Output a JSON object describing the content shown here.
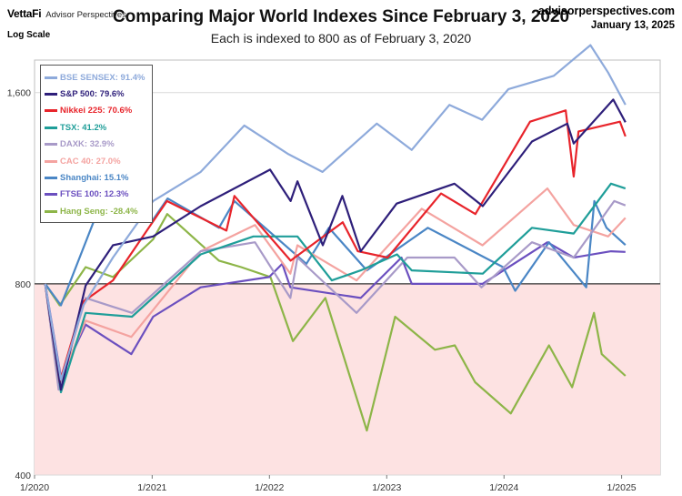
{
  "header": {
    "brand": "VettaFi",
    "brand_sub": "Advisor Perspectives",
    "scale_note": "Log Scale",
    "site": "advisorperspectives.com",
    "date": "January 13, 2025"
  },
  "chart_data": {
    "type": "line",
    "title": "Comparing Major World Indexes Since February 3, 2020",
    "subtitle": "Each is indexed to 800 as of February 3, 2020",
    "xlabel": "",
    "ylabel": "",
    "y_scale": "log",
    "ylim": [
      400,
      1800
    ],
    "baseline": 800,
    "below_baseline_fill": "#fde2e2",
    "y_ticks": [
      400,
      800,
      1600
    ],
    "y_tick_labels": [
      "400",
      "800",
      "1,600"
    ],
    "x_ticks": [
      "2020-01-01",
      "2021-01-01",
      "2022-01-01",
      "2023-01-01",
      "2024-01-01",
      "2025-01-01"
    ],
    "x_tick_labels": [
      "1/2020",
      "1/2021",
      "1/2022",
      "1/2023",
      "1/2024",
      "1/2025"
    ],
    "xlim": [
      "2020-01-01",
      "2025-05-01"
    ],
    "grid": "horizontal",
    "legend_position": "top-left",
    "series": [
      {
        "name": "BSE SENSEX: 91.4%",
        "color": "#8eaadb",
        "x": [
          "2020-02-03",
          "2020-03-23",
          "2020-06-01",
          "2020-09-01",
          "2021-01-04",
          "2021-06-01",
          "2021-10-15",
          "2022-03-01",
          "2022-06-15",
          "2022-12-01",
          "2023-03-20",
          "2023-07-15",
          "2023-10-25",
          "2024-01-15",
          "2024-06-04",
          "2024-09-26",
          "2024-11-20",
          "2025-01-13"
        ],
        "y": [
          800,
          565,
          740,
          880,
          1080,
          1200,
          1420,
          1280,
          1200,
          1430,
          1300,
          1530,
          1450,
          1620,
          1700,
          1900,
          1720,
          1531
        ]
      },
      {
        "name": "S&P 500: 79.6%",
        "color": "#2e1f7a",
        "x": [
          "2020-02-03",
          "2020-03-23",
          "2020-06-08",
          "2020-09-01",
          "2021-01-04",
          "2021-06-01",
          "2022-01-03",
          "2022-03-08",
          "2022-03-29",
          "2022-06-16",
          "2022-08-16",
          "2022-10-12",
          "2023-02-01",
          "2023-07-31",
          "2023-10-27",
          "2024-03-28",
          "2024-07-16",
          "2024-08-05",
          "2024-12-06",
          "2025-01-13"
        ],
        "y": [
          800,
          545,
          795,
          920,
          950,
          1060,
          1210,
          1080,
          1160,
          920,
          1100,
          900,
          1070,
          1150,
          1060,
          1340,
          1430,
          1330,
          1560,
          1437
        ]
      },
      {
        "name": "Nikkei 225: 70.6%",
        "color": "#e8242b",
        "x": [
          "2020-02-03",
          "2020-03-19",
          "2020-06-01",
          "2020-09-01",
          "2021-02-16",
          "2021-08-20",
          "2021-09-14",
          "2022-03-08",
          "2022-08-17",
          "2022-10-03",
          "2023-01-04",
          "2023-06-19",
          "2023-10-04",
          "2024-03-22",
          "2024-07-11",
          "2024-08-05",
          "2024-08-20",
          "2024-12-27",
          "2025-01-13"
        ],
        "y": [
          800,
          560,
          750,
          810,
          1080,
          970,
          1100,
          870,
          1000,
          900,
          880,
          1110,
          1030,
          1440,
          1500,
          1180,
          1390,
          1440,
          1365
        ]
      },
      {
        "name": "TSX: 41.2%",
        "color": "#1f9e99",
        "x": [
          "2020-02-03",
          "2020-03-23",
          "2020-06-08",
          "2020-10-30",
          "2021-06-01",
          "2021-11-12",
          "2022-03-29",
          "2022-07-14",
          "2022-10-12",
          "2023-02-02",
          "2023-03-20",
          "2023-10-27",
          "2024-03-28",
          "2024-08-05",
          "2024-11-29",
          "2025-01-13"
        ],
        "y": [
          800,
          540,
          720,
          710,
          890,
          950,
          950,
          810,
          840,
          890,
          840,
          830,
          980,
          960,
          1150,
          1130
        ]
      },
      {
        "name": "DAXK: 32.9%",
        "color": "#a89ac8",
        "x": [
          "2020-02-03",
          "2020-03-16",
          "2020-06-08",
          "2020-10-30",
          "2021-06-01",
          "2021-11-17",
          "2022-03-07",
          "2022-03-29",
          "2022-09-29",
          "2023-03-06",
          "2023-07-31",
          "2023-10-23",
          "2024-03-28",
          "2024-08-05",
          "2024-12-09",
          "2025-01-13"
        ],
        "y": [
          800,
          545,
          760,
          720,
          900,
          930,
          760,
          880,
          720,
          880,
          880,
          790,
          930,
          880,
          1080,
          1063
        ]
      },
      {
        "name": "CAC 40: 27.0%",
        "color": "#f4a3a0",
        "x": [
          "2020-02-03",
          "2020-03-18",
          "2020-06-08",
          "2020-10-28",
          "2021-06-01",
          "2021-11-17",
          "2022-03-07",
          "2022-03-29",
          "2022-09-29",
          "2023-04-20",
          "2023-10-26",
          "2024-05-15",
          "2024-08-05",
          "2024-11-20",
          "2025-01-13"
        ],
        "y": [
          800,
          560,
          700,
          660,
          900,
          990,
          830,
          920,
          810,
          1050,
          920,
          1130,
          990,
          950,
          1016
        ]
      },
      {
        "name": "Shanghai: 15.1%",
        "color": "#4a86c5",
        "x": [
          "2020-02-03",
          "2020-03-23",
          "2020-07-09",
          "2021-01-04",
          "2021-02-18",
          "2021-07-28",
          "2021-09-14",
          "2022-04-26",
          "2022-07-05",
          "2022-10-31",
          "2023-05-09",
          "2023-12-29",
          "2024-02-05",
          "2024-05-20",
          "2024-09-13",
          "2024-10-08",
          "2024-11-15",
          "2025-01-13"
        ],
        "y": [
          800,
          740,
          1020,
          1010,
          1090,
          980,
          1080,
          860,
          980,
          840,
          980,
          850,
          780,
          930,
          790,
          1080,
          980,
          921
        ]
      },
      {
        "name": "FTSE 100: 12.3%",
        "color": "#6b4fbf",
        "x": [
          "2020-02-03",
          "2020-03-23",
          "2020-06-08",
          "2020-10-28",
          "2021-01-04",
          "2021-06-01",
          "2021-12-31",
          "2022-02-10",
          "2022-03-07",
          "2022-10-12",
          "2023-02-16",
          "2023-03-20",
          "2023-10-26",
          "2024-05-15",
          "2024-08-05",
          "2024-11-29",
          "2025-01-13"
        ],
        "y": [
          800,
          570,
          690,
          620,
          710,
          790,
          820,
          860,
          790,
          760,
          880,
          800,
          800,
          930,
          880,
          900,
          898
        ]
      },
      {
        "name": "Hang Seng: -28.4%",
        "color": "#8db548",
        "x": [
          "2020-02-03",
          "2020-03-19",
          "2020-06-08",
          "2020-09-01",
          "2021-01-04",
          "2021-02-17",
          "2021-07-28",
          "2021-10-05",
          "2022-01-04",
          "2022-03-15",
          "2022-06-24",
          "2022-10-31",
          "2023-01-27",
          "2023-05-31",
          "2023-08-01",
          "2023-10-03",
          "2024-01-22",
          "2024-05-20",
          "2024-07-31",
          "2024-10-07",
          "2024-10-31",
          "2025-01-13"
        ],
        "y": [
          800,
          740,
          850,
          820,
          940,
          1030,
          870,
          850,
          820,
          650,
          760,
          470,
          710,
          630,
          640,
          560,
          500,
          640,
          550,
          720,
          620,
          573
        ]
      }
    ]
  }
}
